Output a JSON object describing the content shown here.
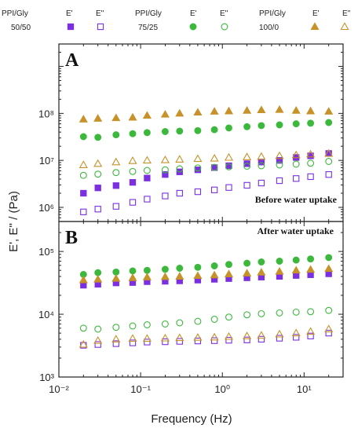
{
  "chart_data": [
    {
      "panel_label": "A",
      "type": "scatter",
      "annotation": "Before water uptake",
      "xscale": "log",
      "yscale": "log",
      "xlim": [
        0.01,
        30
      ],
      "ylim": [
        500000,
        3000000000
      ],
      "x": [
        0.02,
        0.03,
        0.05,
        0.08,
        0.12,
        0.2,
        0.3,
        0.5,
        0.8,
        1.2,
        2,
        3,
        5,
        8,
        12,
        20
      ],
      "series": [
        {
          "legend_group": "50/50",
          "name": "E'",
          "marker": "filled-square",
          "color": "#7b2fe0",
          "values": [
            2000000,
            2600000,
            2900000,
            3400000,
            4200000,
            5000000,
            5700000,
            6300000,
            7000000,
            7700000,
            8500000,
            9200000,
            10000000,
            11500000,
            12500000,
            14000000
          ]
        },
        {
          "legend_group": "50/50",
          "name": "E''",
          "marker": "open-square",
          "color": "#7b2fe0",
          "values": [
            800000,
            920000,
            1050000,
            1280000,
            1500000,
            1750000,
            2000000,
            2150000,
            2350000,
            2650000,
            2950000,
            3300000,
            3700000,
            4100000,
            4500000,
            5000000
          ]
        },
        {
          "legend_group": "75/25",
          "name": "E'",
          "marker": "filled-circle",
          "color": "#3cb83c",
          "values": [
            32000000,
            31000000,
            35000000,
            37000000,
            39000000,
            41000000,
            42000000,
            43000000,
            45000000,
            49000000,
            52000000,
            55000000,
            57000000,
            60000000,
            62000000,
            64000000
          ]
        },
        {
          "legend_group": "75/25",
          "name": "E''",
          "marker": "open-circle",
          "color": "#3cb83c",
          "values": [
            4800000,
            5100000,
            5500000,
            5800000,
            6100000,
            6300000,
            6600000,
            6900000,
            7100000,
            7300000,
            7500000,
            7700000,
            8000000,
            8300000,
            8700000,
            9500000
          ]
        },
        {
          "legend_group": "100/0",
          "name": "E'",
          "marker": "filled-triangle",
          "color": "#c8922a",
          "values": [
            75000000,
            78000000,
            80000000,
            82000000,
            90000000,
            95000000,
            100000000,
            105000000,
            110000000,
            112000000,
            115000000,
            118000000,
            120000000,
            115000000,
            112000000,
            110000000
          ]
        },
        {
          "legend_group": "100/0",
          "name": "E''",
          "marker": "open-triangle",
          "color": "#c8922a",
          "values": [
            8000000,
            8500000,
            9200000,
            9800000,
            10000000,
            10200000,
            10500000,
            10800000,
            11000000,
            11500000,
            11800000,
            12000000,
            12500000,
            13000000,
            13500000,
            14000000
          ]
        }
      ]
    },
    {
      "panel_label": "B",
      "type": "scatter",
      "annotation": "After water uptake",
      "xscale": "log",
      "yscale": "log",
      "xlim": [
        0.01,
        30
      ],
      "ylim": [
        1000,
        300000
      ],
      "x": [
        0.02,
        0.03,
        0.05,
        0.08,
        0.12,
        0.2,
        0.3,
        0.5,
        0.8,
        1.2,
        2,
        3,
        5,
        8,
        12,
        20
      ],
      "series": [
        {
          "legend_group": "50/50",
          "name": "E'",
          "marker": "filled-square",
          "color": "#7b2fe0",
          "values": [
            29000,
            30000,
            31500,
            32000,
            33000,
            33500,
            34000,
            35000,
            36000,
            37000,
            38000,
            39000,
            40000,
            41500,
            42500,
            44000
          ]
        },
        {
          "legend_group": "50/50",
          "name": "E''",
          "marker": "open-square",
          "color": "#7b2fe0",
          "values": [
            3200,
            3300,
            3400,
            3500,
            3600,
            3650,
            3700,
            3750,
            3800,
            3850,
            3900,
            4000,
            4150,
            4300,
            4500,
            5000
          ]
        },
        {
          "legend_group": "75/25",
          "name": "E'",
          "marker": "filled-circle",
          "color": "#3cb83c",
          "values": [
            43000,
            46000,
            47000,
            49000,
            50000,
            52000,
            54000,
            56000,
            59000,
            62000,
            65000,
            68000,
            70000,
            73000,
            76000,
            80000
          ]
        },
        {
          "legend_group": "75/25",
          "name": "E''",
          "marker": "open-circle",
          "color": "#3cb83c",
          "values": [
            6000,
            5800,
            6200,
            6500,
            6800,
            7000,
            7300,
            7700,
            8300,
            9000,
            9800,
            10200,
            10500,
            10800,
            11000,
            11500
          ]
        },
        {
          "legend_group": "100/0",
          "name": "E'",
          "marker": "filled-triangle",
          "color": "#c8922a",
          "values": [
            35000,
            36000,
            37000,
            38000,
            39000,
            39500,
            40000,
            41000,
            42000,
            43500,
            45000,
            46500,
            48000,
            50000,
            51500,
            53000
          ]
        },
        {
          "legend_group": "100/0",
          "name": "E''",
          "marker": "open-triangle",
          "color": "#c8922a",
          "values": [
            3300,
            3800,
            4000,
            4100,
            4100,
            4150,
            4200,
            4250,
            4300,
            4400,
            4500,
            4600,
            4800,
            5000,
            5300,
            5800
          ]
        }
      ]
    }
  ],
  "axes": {
    "xlabel": "Frequency (Hz)",
    "ylabel": "E', E'' / (Pa)",
    "x_ticks": [
      "10-2",
      "10-1",
      "100",
      "101"
    ],
    "y_ticks_A": [
      "106",
      "107",
      "108"
    ],
    "y_ticks_B": [
      "103",
      "104",
      "105"
    ]
  },
  "legend": {
    "groups": [
      {
        "header": "PPI/Gly",
        "label": "50/50",
        "col1": "E'",
        "col2": "E''"
      },
      {
        "header": "PPI/Gly",
        "label": "75/25",
        "col1": "E'",
        "col2": "E''"
      },
      {
        "header": "PPI/Gly",
        "label": "100/0",
        "col1": "E'",
        "col2": "E''"
      }
    ]
  }
}
